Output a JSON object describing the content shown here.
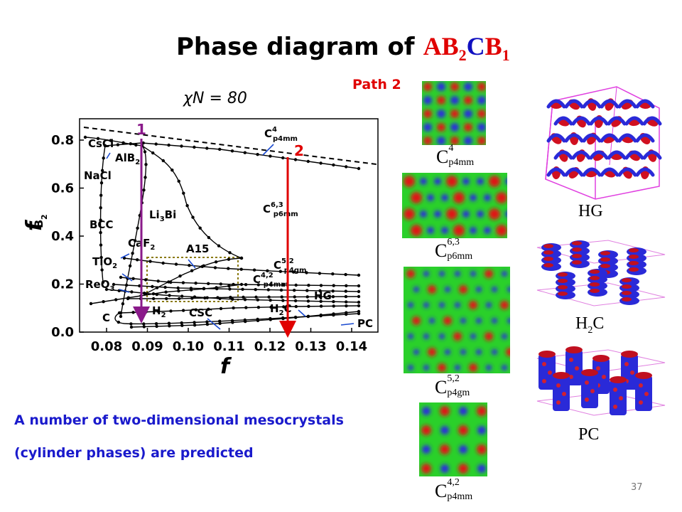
{
  "title": {
    "text": "Phase diagram of",
    "formula": {
      "a": "A",
      "b2": "B",
      "b2_sub": "2",
      "c": "C",
      "b1": "B",
      "b1_sub": "1"
    }
  },
  "path_label": "Path 2",
  "chi_n": "χN = 80",
  "bottom_text": {
    "line1": "A number of two-dimensional mesocrystals",
    "line2": "(cylinder phases) are predicted"
  },
  "page_number": "37",
  "colors": {
    "title_formula_a": "#e00000",
    "title_formula_c": "#1010c0",
    "bottom_text": "#1a1acc",
    "path1_arrow": "#8a1a8a",
    "path2_arrow": "#e00000"
  },
  "diagram": {
    "x_label": "f",
    "y_label": "f",
    "y_label_sub": "B",
    "y_label_subsub": "2",
    "x_ticks": [
      "0.08",
      "0.09",
      "0.10",
      "0.11",
      "0.12",
      "0.13",
      "0.14"
    ],
    "y_ticks": [
      "0.0",
      "0.2",
      "0.4",
      "0.6",
      "0.8"
    ],
    "path_markers": {
      "path1": "1",
      "path2": "2"
    },
    "phase_labels": {
      "cscl": "CsCl",
      "alb2": "AlB",
      "alb2_sub": "2",
      "nacl": "NaCl",
      "li3bi": "Li",
      "li3bi_sub": "3",
      "li3bi_end": "Bi",
      "bcc": "BCC",
      "caf2": "CaF",
      "caf2_sub": "2",
      "tio2": "TiO",
      "tio2_sub": "2",
      "reo3": "ReO",
      "reo3_sub": "3",
      "a15": "A15",
      "c": "C",
      "h2": "H",
      "h2_sub": "2",
      "csc": "CSC",
      "hg": "HG",
      "h2c": "H",
      "h2c_sub": "2",
      "h2c_end": "C",
      "pc": "PC",
      "c4p4mm": "C",
      "c4p4mm_sup": "4",
      "c4p4mm_sub": "p4mm",
      "c63p6mm": "C",
      "c63p6mm_sup": "6,3",
      "c63p6mm_sub": "p6mm",
      "c52p4gm": "C",
      "c52p4gm_sup": "5,2",
      "c52p4gm_sub": "p4gm",
      "c42p4mm": "C",
      "c42p4mm_sup": "4,2",
      "c42p4mm_sub": "p4mm"
    }
  },
  "patterns": [
    {
      "id": "c4",
      "base": "C",
      "sup": "4",
      "sub": "p4mm"
    },
    {
      "id": "c63",
      "base": "C",
      "sup": "6,3",
      "sub": "p6mm"
    },
    {
      "id": "c52",
      "base": "C",
      "sup": "5,2",
      "sub": "p4gm"
    },
    {
      "id": "c42",
      "base": "C",
      "sup": "4,2",
      "sub": "p4mm"
    }
  ],
  "structures": [
    {
      "id": "hg",
      "label": "HG"
    },
    {
      "id": "h2c",
      "label": "H",
      "sub": "2",
      "end": "C"
    },
    {
      "id": "pc",
      "label": "PC"
    }
  ]
}
